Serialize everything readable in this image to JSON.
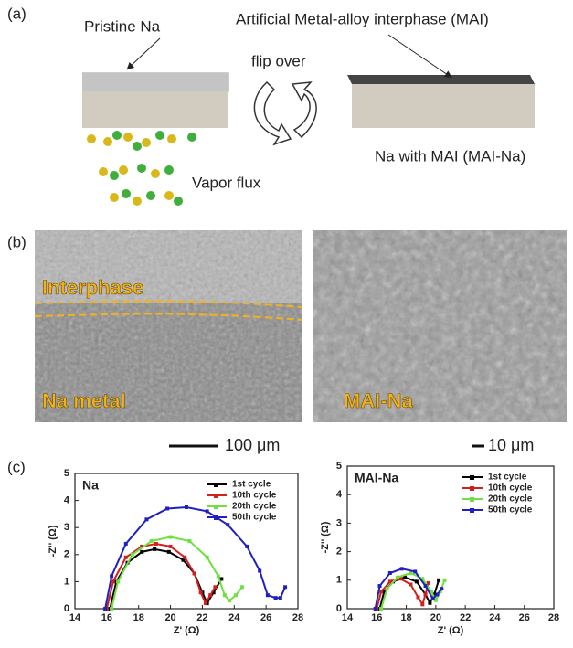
{
  "panel_a": {
    "label": "(a)",
    "pristine": "Pristine Na",
    "mai": "Artificial Metal-alloy interphase (MAI)",
    "flip": "flip over",
    "result": "Na with MAI (MAI-Na)",
    "vapor": "Vapor flux"
  },
  "panel_b": {
    "label": "(b)",
    "interphase": "Interphase",
    "na_metal": "Na metal",
    "mai_na": "MAI-Na",
    "scale_left": "100 μm",
    "scale_right": "10 μm"
  },
  "panel_c_label": "(c)",
  "chart_data": [
    {
      "type": "line",
      "title": "Na",
      "xlabel": "Z' (Ω)",
      "ylabel": "-Z'' (Ω)",
      "xlim": [
        14,
        28
      ],
      "xticks": [
        14,
        16,
        18,
        20,
        22,
        24,
        26,
        28
      ],
      "ylim": [
        0,
        5
      ],
      "yticks": [
        0,
        1,
        2,
        3,
        4,
        5
      ],
      "series": [
        {
          "name": "1st cycle",
          "color": "#000000",
          "x": [
            16.2,
            16.6,
            17.3,
            18.2,
            19.0,
            19.9,
            20.8,
            21.5,
            22.0,
            22.3,
            22.7,
            23.2
          ],
          "values": [
            0,
            1.0,
            1.7,
            2.1,
            2.2,
            2.1,
            1.8,
            1.3,
            0.6,
            0.2,
            0.6,
            1.1
          ]
        },
        {
          "name": "10th cycle",
          "color": "#d02020",
          "x": [
            16.0,
            16.4,
            17.2,
            18.2,
            19.1,
            20.0,
            20.9,
            21.5,
            21.9,
            22.2,
            22.5,
            22.8
          ],
          "values": [
            0,
            1.0,
            1.9,
            2.3,
            2.4,
            2.3,
            1.9,
            1.3,
            0.6,
            0.2,
            0.5,
            0.8
          ]
        },
        {
          "name": "20th cycle",
          "color": "#70e040",
          "x": [
            16.3,
            16.7,
            17.6,
            18.8,
            20.0,
            21.2,
            22.3,
            23.0,
            23.4,
            23.7,
            24.1,
            24.5
          ],
          "values": [
            0,
            1.0,
            2.0,
            2.5,
            2.65,
            2.5,
            1.9,
            1.2,
            0.5,
            0.3,
            0.5,
            0.8
          ]
        },
        {
          "name": "50th cycle",
          "color": "#2020c0",
          "x": [
            15.9,
            16.3,
            17.2,
            18.5,
            19.8,
            21.0,
            22.3,
            23.6,
            24.8,
            25.6,
            26.1,
            26.6,
            26.9,
            27.2
          ],
          "values": [
            0,
            1.2,
            2.4,
            3.3,
            3.7,
            3.75,
            3.6,
            3.1,
            2.3,
            1.4,
            0.5,
            0.4,
            0.4,
            0.8
          ]
        }
      ]
    },
    {
      "type": "line",
      "title": "MAI-Na",
      "xlabel": "Z' (Ω)",
      "ylabel": "-Z'' (Ω)",
      "xlim": [
        14,
        28
      ],
      "xticks": [
        14,
        16,
        18,
        20,
        22,
        24,
        26,
        28
      ],
      "ylim": [
        0,
        5
      ],
      "yticks": [
        0,
        1,
        2,
        3,
        4,
        5
      ],
      "series": [
        {
          "name": "1st cycle",
          "color": "#000000",
          "x": [
            16.2,
            16.5,
            17.1,
            17.9,
            18.7,
            19.3,
            19.6,
            19.9,
            20.2
          ],
          "values": [
            0,
            0.6,
            0.95,
            1.1,
            0.95,
            0.5,
            0.2,
            0.5,
            1.0
          ]
        },
        {
          "name": "10th cycle",
          "color": "#d02020",
          "x": [
            16.0,
            16.3,
            16.9,
            17.6,
            18.3,
            18.8,
            19.1,
            19.3,
            19.5
          ],
          "values": [
            0,
            0.6,
            0.95,
            1.05,
            0.85,
            0.4,
            0.15,
            0.5,
            0.9
          ]
        },
        {
          "name": "20th cycle",
          "color": "#70e040",
          "x": [
            16.3,
            16.7,
            17.4,
            18.3,
            19.1,
            19.7,
            20.0,
            20.3,
            20.6
          ],
          "values": [
            0,
            0.7,
            1.1,
            1.25,
            1.05,
            0.6,
            0.3,
            0.6,
            1.0
          ]
        },
        {
          "name": "50th cycle",
          "color": "#2020c0",
          "x": [
            15.9,
            16.2,
            16.9,
            17.7,
            18.6,
            19.3,
            19.8,
            20.1,
            20.4
          ],
          "values": [
            0,
            0.8,
            1.25,
            1.4,
            1.3,
            0.8,
            0.35,
            0.5,
            0.7
          ]
        }
      ]
    }
  ]
}
